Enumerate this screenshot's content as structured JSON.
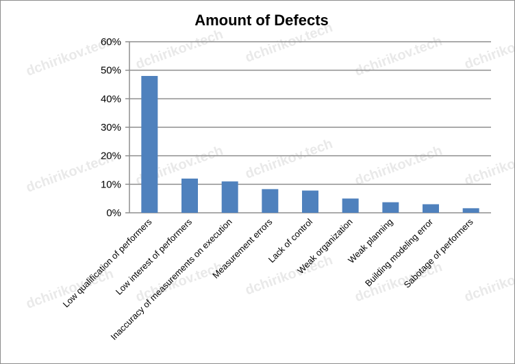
{
  "chart_data": {
    "type": "bar",
    "title": "Amount of Defects",
    "xlabel": "",
    "ylabel": "",
    "categories": [
      "Low qualification of performers",
      "Low interest of performers",
      "Inaccuracy of measurements on execution",
      "Measurement errors",
      "Lack of control",
      "Weak organization",
      "Weak planning",
      "Building modeling error",
      "Sabotage of performers"
    ],
    "values": [
      48,
      12,
      11,
      8.3,
      7.8,
      5,
      3.7,
      3,
      1.6
    ],
    "ylim": [
      0,
      60
    ],
    "yticks": [
      "0%",
      "10%",
      "20%",
      "30%",
      "40%",
      "50%",
      "60%"
    ],
    "grid": true,
    "legend": "none",
    "bar_color": "#4f81bd",
    "watermark": "dchirikov.tech"
  }
}
